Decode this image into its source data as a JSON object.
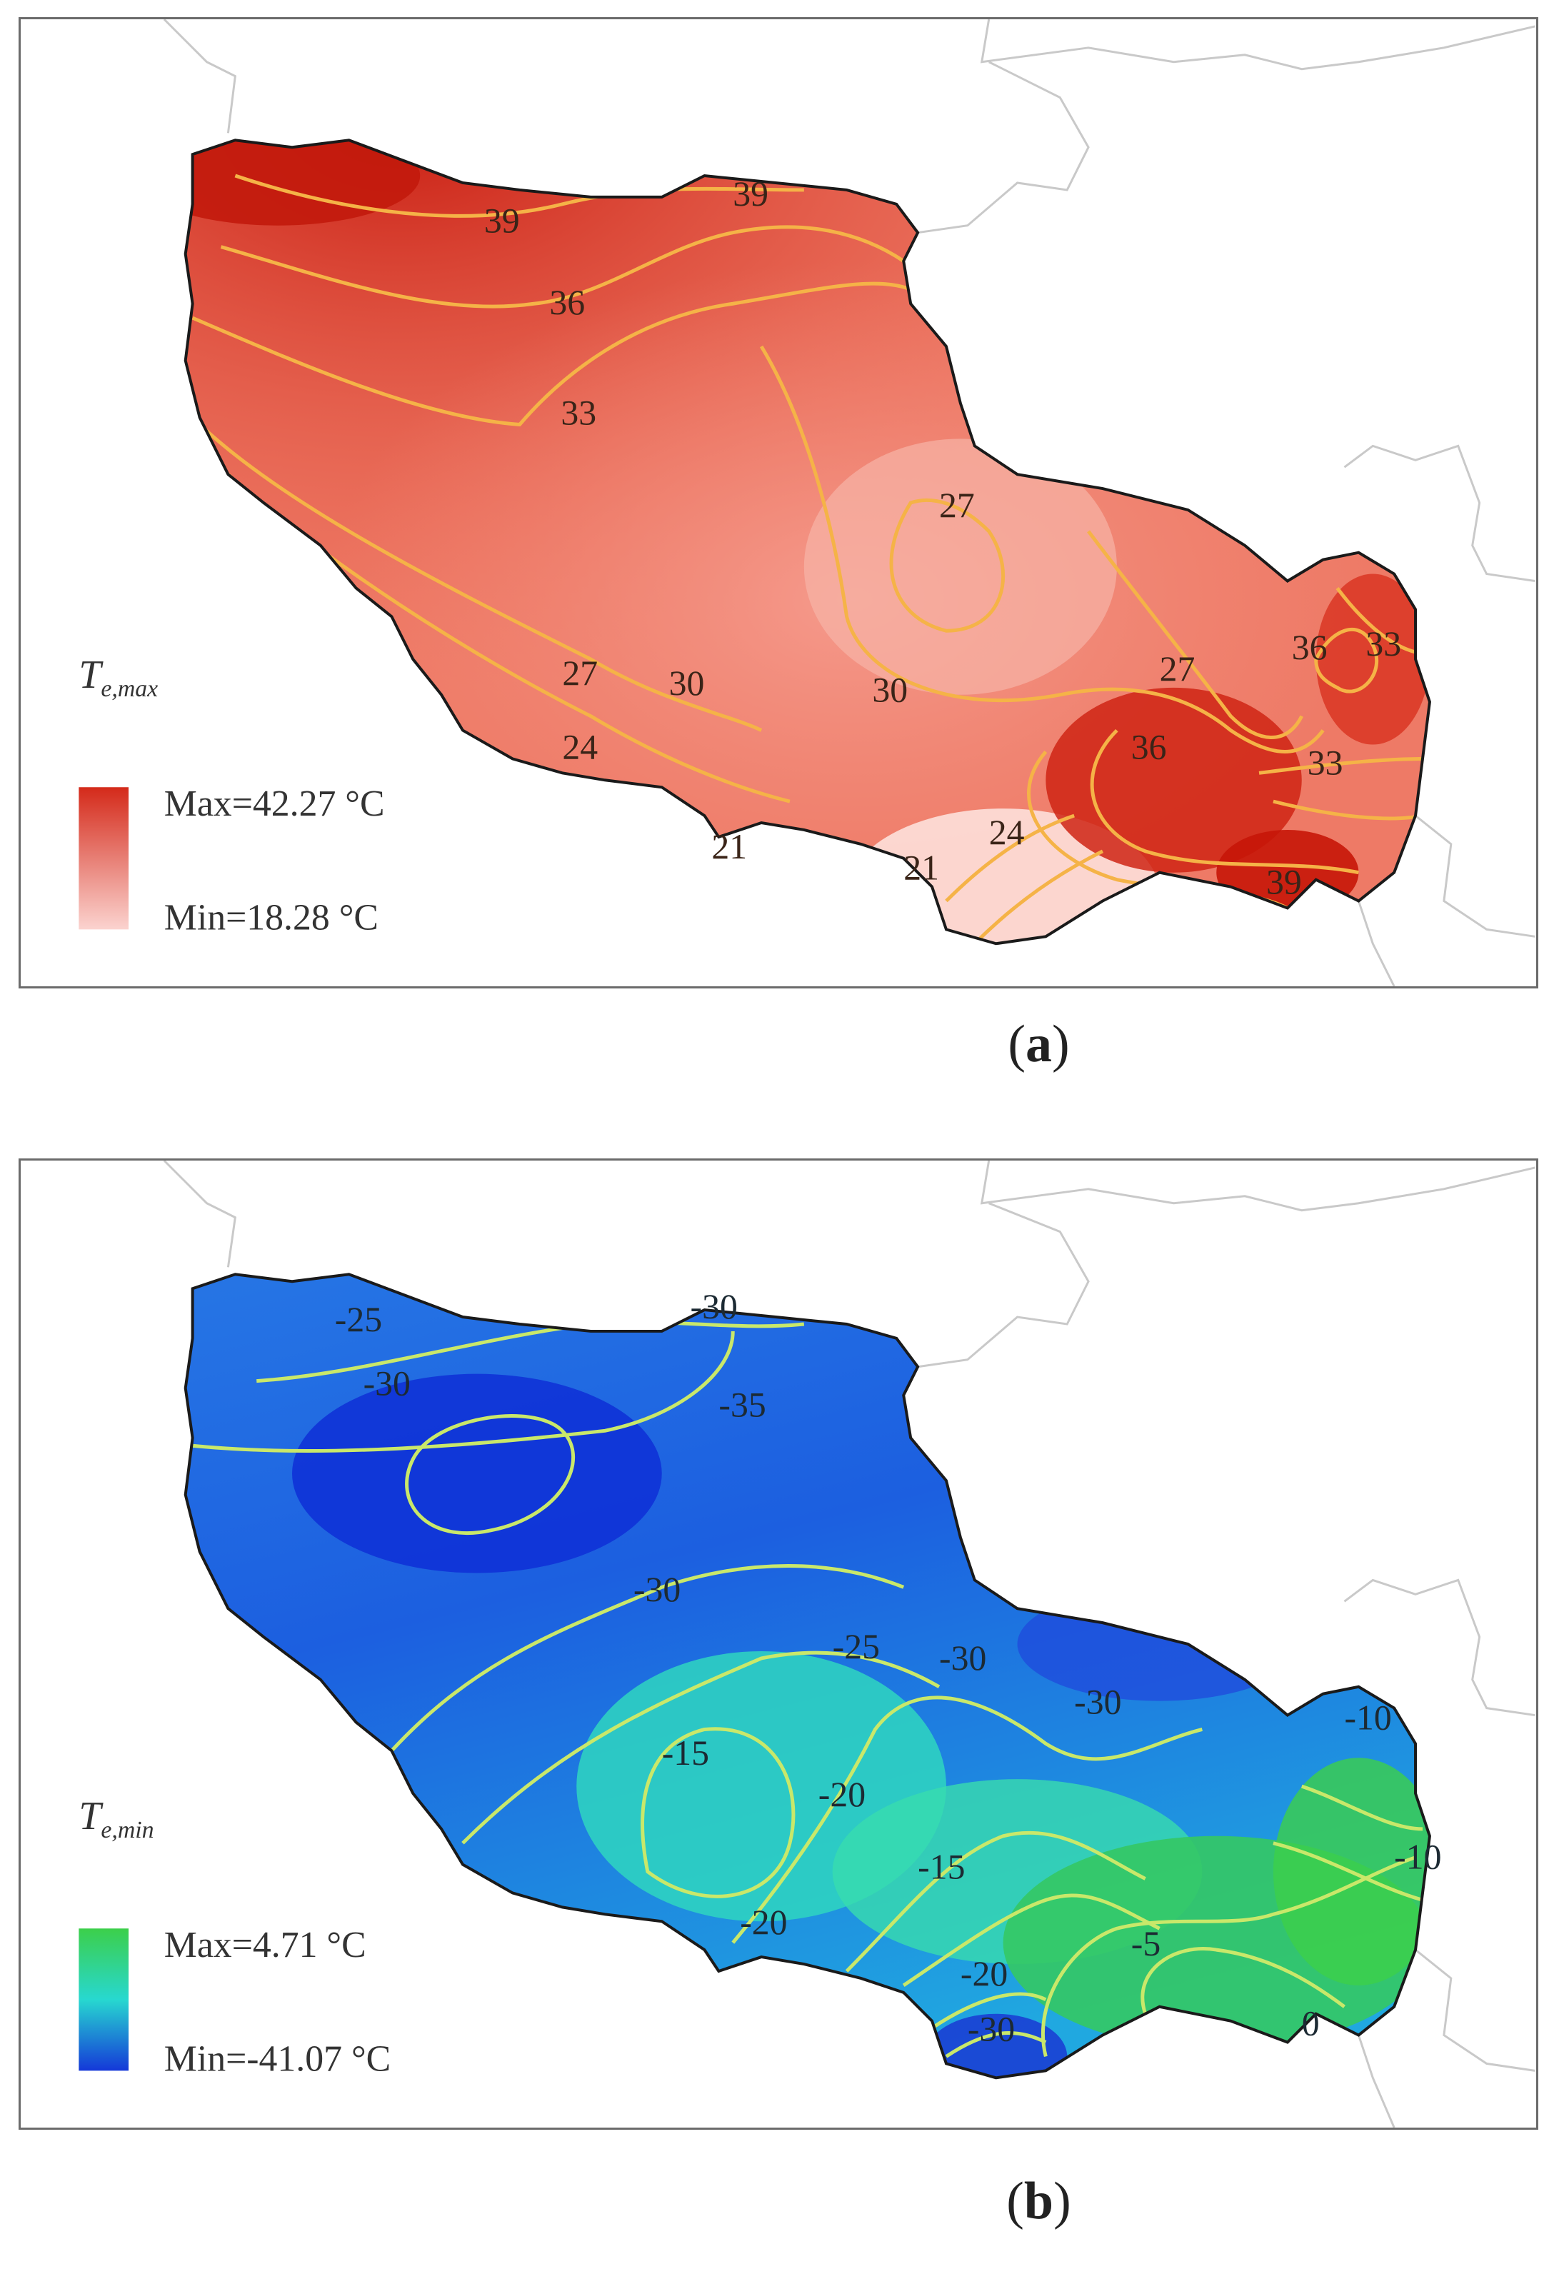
{
  "panels": [
    {
      "id": "a",
      "caption_open": "(",
      "caption_letter": "a",
      "caption_close": ")",
      "variable_main": "T",
      "variable_sub": "e,max",
      "legend_max": "Max=42.27 °C",
      "legend_min": "Min=18.28 °C",
      "color_high": "#d42a1a",
      "color_low": "#fbd3cf",
      "contour_color": "#f5b347",
      "contour_labels": [
        "39",
        "39",
        "36",
        "33",
        "27",
        "27",
        "30",
        "30",
        "27",
        "36",
        "33",
        "36",
        "33",
        "39",
        "24",
        "24",
        "21",
        "21"
      ]
    },
    {
      "id": "b",
      "caption_open": "(",
      "caption_letter": "b",
      "caption_close": ")",
      "variable_main": "T",
      "variable_sub": "e,min",
      "legend_max": "Max=4.71 °C",
      "legend_min": "Min=-41.07 °C",
      "color_high": "#3ccf4a",
      "color_mid": "#27d8d0",
      "color_low": "#1438d8",
      "contour_color": "#c9e86a",
      "contour_labels": [
        "-25",
        "-30",
        "-30",
        "-35",
        "-30",
        "-25",
        "-30",
        "-30",
        "-15",
        "-20",
        "-10",
        "-10",
        "-15",
        "-20",
        "-5",
        "-20",
        "-30",
        "0"
      ]
    }
  ]
}
